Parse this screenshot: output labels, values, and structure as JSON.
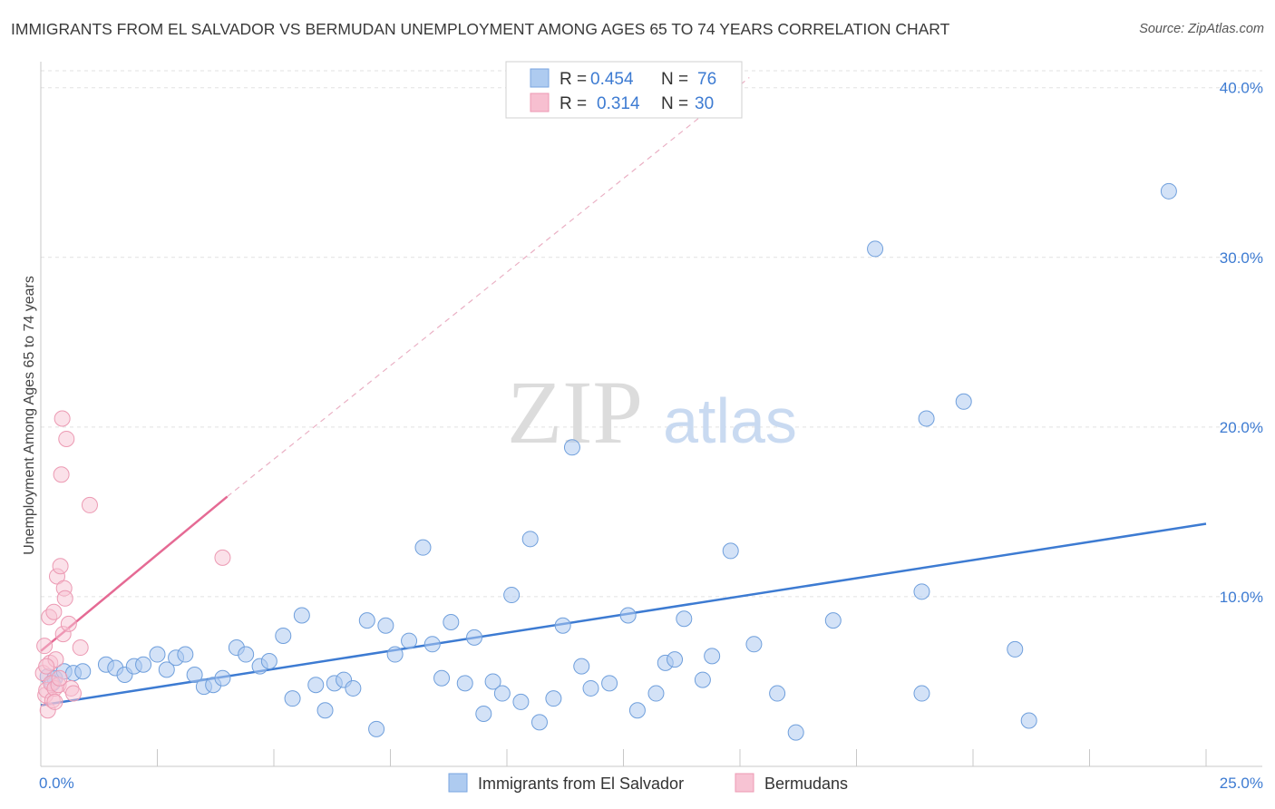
{
  "title": "IMMIGRANTS FROM EL SALVADOR VS BERMUDAN UNEMPLOYMENT AMONG AGES 65 TO 74 YEARS CORRELATION CHART",
  "source": "Source: ZipAtlas.com",
  "watermark": {
    "zip": "ZIP",
    "atlas": "atlas"
  },
  "legend": {
    "r_label": "R =",
    "n_label": "N =",
    "rows": [
      {
        "r": "0.454",
        "n": "76",
        "color": "#aecbf0",
        "edge": "#7aa6e0"
      },
      {
        "r": "0.314",
        "n": "30",
        "color": "#f7bfd0",
        "edge": "#ec9ab3"
      }
    ]
  },
  "colors": {
    "blue": "#3d7bd2",
    "pink": "#e56a94",
    "blue_fill": "#aecbf0",
    "pink_fill": "#f7c3d3",
    "grid": "#e2e2e2"
  },
  "chart_data": {
    "type": "scatter",
    "xlabel": "",
    "ylabel": "Unemployment Among Ages 65 to 74 years",
    "xlim": [
      0,
      25
    ],
    "ylim": [
      0,
      41
    ],
    "x_tick_labels": [
      "0.0%",
      "25.0%"
    ],
    "y_ticks": [
      10,
      20,
      30,
      40
    ],
    "y_tick_labels": [
      "10.0%",
      "20.0%",
      "30.0%",
      "40.0%"
    ],
    "grid": true,
    "legend_position": "top-center",
    "series": [
      {
        "name": "Immigrants from El Salvador",
        "color": "#3d7bd2",
        "points": [
          [
            0.15,
            5.3
          ],
          [
            0.3,
            5.2
          ],
          [
            0.5,
            5.6
          ],
          [
            0.7,
            5.5
          ],
          [
            0.9,
            5.6
          ],
          [
            1.4,
            6.0
          ],
          [
            1.6,
            5.8
          ],
          [
            1.8,
            5.4
          ],
          [
            2.0,
            5.9
          ],
          [
            2.2,
            6.0
          ],
          [
            2.5,
            6.6
          ],
          [
            2.7,
            5.7
          ],
          [
            2.9,
            6.4
          ],
          [
            3.1,
            6.6
          ],
          [
            3.3,
            5.4
          ],
          [
            3.5,
            4.7
          ],
          [
            3.7,
            4.8
          ],
          [
            3.9,
            5.2
          ],
          [
            4.2,
            7.0
          ],
          [
            4.4,
            6.6
          ],
          [
            4.7,
            5.9
          ],
          [
            4.9,
            6.2
          ],
          [
            5.2,
            7.7
          ],
          [
            5.4,
            4.0
          ],
          [
            5.6,
            8.9
          ],
          [
            5.9,
            4.8
          ],
          [
            6.1,
            3.3
          ],
          [
            6.3,
            4.9
          ],
          [
            6.5,
            5.1
          ],
          [
            6.7,
            4.6
          ],
          [
            7.0,
            8.6
          ],
          [
            7.2,
            2.2
          ],
          [
            7.4,
            8.3
          ],
          [
            7.6,
            6.6
          ],
          [
            7.9,
            7.4
          ],
          [
            8.2,
            12.9
          ],
          [
            8.4,
            7.2
          ],
          [
            8.6,
            5.2
          ],
          [
            8.8,
            8.5
          ],
          [
            9.1,
            4.9
          ],
          [
            9.3,
            7.6
          ],
          [
            9.5,
            3.1
          ],
          [
            9.7,
            5.0
          ],
          [
            9.9,
            4.3
          ],
          [
            10.1,
            10.1
          ],
          [
            10.3,
            3.8
          ],
          [
            10.5,
            13.4
          ],
          [
            10.7,
            2.6
          ],
          [
            11.0,
            4.0
          ],
          [
            11.2,
            8.3
          ],
          [
            11.4,
            18.8
          ],
          [
            11.6,
            5.9
          ],
          [
            11.8,
            4.6
          ],
          [
            12.2,
            4.9
          ],
          [
            12.6,
            8.9
          ],
          [
            12.8,
            3.3
          ],
          [
            13.2,
            4.3
          ],
          [
            13.4,
            6.1
          ],
          [
            13.6,
            6.3
          ],
          [
            13.8,
            8.7
          ],
          [
            14.2,
            5.1
          ],
          [
            14.4,
            6.5
          ],
          [
            14.8,
            12.7
          ],
          [
            15.3,
            7.2
          ],
          [
            15.8,
            4.3
          ],
          [
            16.2,
            2.0
          ],
          [
            17.0,
            8.6
          ],
          [
            17.9,
            30.5
          ],
          [
            18.9,
            10.3
          ],
          [
            18.9,
            4.3
          ],
          [
            19.0,
            20.5
          ],
          [
            19.8,
            21.5
          ],
          [
            20.9,
            6.9
          ],
          [
            21.2,
            2.7
          ],
          [
            24.2,
            33.9
          ],
          [
            0.25,
            4.9
          ]
        ],
        "trend": [
          [
            0,
            3.6
          ],
          [
            25,
            14.3
          ]
        ]
      },
      {
        "name": "Bermudans",
        "color": "#e56a94",
        "points": [
          [
            0.05,
            5.5
          ],
          [
            0.08,
            7.1
          ],
          [
            0.1,
            4.2
          ],
          [
            0.12,
            4.5
          ],
          [
            0.15,
            3.3
          ],
          [
            0.18,
            8.8
          ],
          [
            0.2,
            6.1
          ],
          [
            0.22,
            4.9
          ],
          [
            0.25,
            3.9
          ],
          [
            0.28,
            9.1
          ],
          [
            0.3,
            4.6
          ],
          [
            0.32,
            6.3
          ],
          [
            0.35,
            11.2
          ],
          [
            0.38,
            4.8
          ],
          [
            0.4,
            5.2
          ],
          [
            0.42,
            11.8
          ],
          [
            0.44,
            17.2
          ],
          [
            0.46,
            20.5
          ],
          [
            0.48,
            7.8
          ],
          [
            0.5,
            10.5
          ],
          [
            0.52,
            9.9
          ],
          [
            0.55,
            19.3
          ],
          [
            0.6,
            8.4
          ],
          [
            0.65,
            4.6
          ],
          [
            0.7,
            4.3
          ],
          [
            0.85,
            7.0
          ],
          [
            1.05,
            15.4
          ],
          [
            3.9,
            12.3
          ],
          [
            0.12,
            5.9
          ],
          [
            0.3,
            3.8
          ]
        ],
        "trend": [
          [
            0,
            6.8
          ],
          [
            4.0,
            15.9
          ]
        ],
        "trend_extension": [
          [
            4.0,
            15.9
          ],
          [
            15.2,
            40.6
          ]
        ]
      }
    ]
  },
  "bottom_legend": [
    {
      "label": "Immigrants from El Salvador",
      "color": "#aecbf0",
      "edge": "#7aa6e0"
    },
    {
      "label": "Bermudans",
      "color": "#f7c3d3",
      "edge": "#ec9ab3"
    }
  ]
}
